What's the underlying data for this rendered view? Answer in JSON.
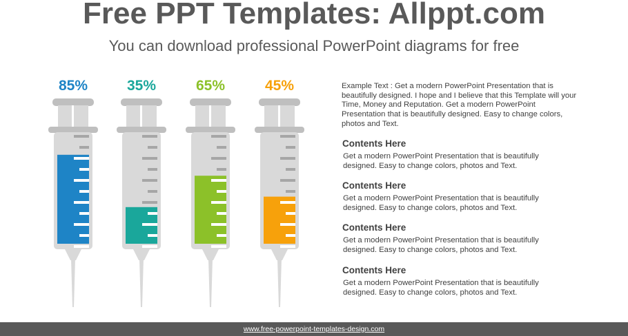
{
  "header": {
    "title": "Free PPT Templates: Allppt.com",
    "subtitle": "You can download professional PowerPoint diagrams for free"
  },
  "syringes": [
    {
      "label": "85%",
      "value": 85,
      "color": "#1e84c6"
    },
    {
      "label": "35%",
      "value": 35,
      "color": "#1aa79b"
    },
    {
      "label": "65%",
      "value": 65,
      "color": "#8cc129"
    },
    {
      "label": "45%",
      "value": 45,
      "color": "#f7a10b"
    }
  ],
  "intro": "Example Text : Get a modern PowerPoint  Presentation that is beautifully designed. I hope and I believe that this Template will your Time, Money and Reputation. Get a modern PowerPoint  Presentation that is beautifully designed. Easy to change colors, photos and Text.",
  "sections": [
    {
      "heading": "Contents Here",
      "body": "Get a modern PowerPoint  Presentation that is beautifully designed. Easy to change colors, photos and Text."
    },
    {
      "heading": "Contents Here",
      "body": "Get a modern PowerPoint  Presentation that is beautifully designed. Easy to change colors, photos and Text."
    },
    {
      "heading": "Contents Here",
      "body": "Get a modern PowerPoint  Presentation that is beautifully designed. Easy to change colors, photos and Text."
    },
    {
      "heading": "Contents Here",
      "body": "Get a modern PowerPoint  Presentation that is beautifully designed. Easy to change colors, photos and Text."
    }
  ],
  "footer": {
    "link_text": "www.free-powerpoint-templates-design.com"
  }
}
